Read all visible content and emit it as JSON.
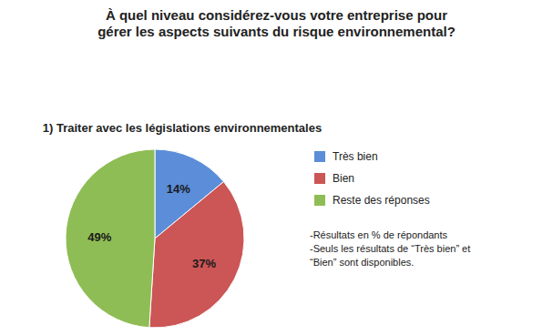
{
  "chart_data": {
    "type": "pie",
    "title": "À quel niveau considérez-vous votre entreprise pour\ngérer les aspects suivants du risque environnemental?",
    "subtitle": "1) Traiter avec les législations environnementales",
    "categories": [
      "Très bien",
      "Bien",
      "Reste des réponses"
    ],
    "values": [
      14,
      37,
      49
    ],
    "value_labels": [
      "14%",
      "37%",
      "49%"
    ],
    "colors": [
      "#5B8DD9",
      "#CC5555",
      "#8FBD55"
    ],
    "data_labels": true,
    "legend": "right",
    "annotations": [
      "-Résultats en % de répondants\n-Seuls les résultats de “Très bien” et\n“Bien” sont disponibles."
    ]
  }
}
